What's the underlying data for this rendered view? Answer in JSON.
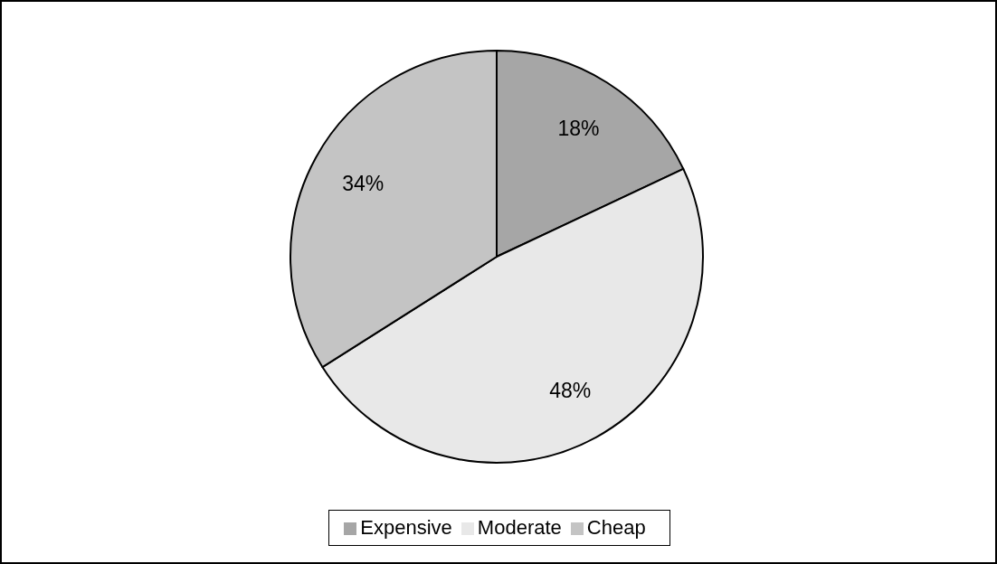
{
  "chart_data": {
    "type": "pie",
    "categories": [
      "Expensive",
      "Moderate",
      "Cheap"
    ],
    "values": [
      18,
      48,
      34
    ],
    "colors": [
      "#a6a6a6",
      "#e8e8e8",
      "#c4c4c4"
    ],
    "value_labels": [
      "18%",
      "48%",
      "34%"
    ],
    "legend": "bottom"
  }
}
